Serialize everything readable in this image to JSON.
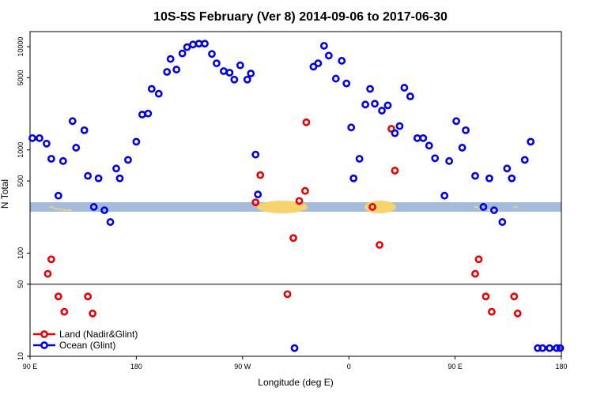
{
  "chart_data": {
    "type": "scatter",
    "title": "10S-5S February (Ver 8)   2014-09-06 to 2017-06-30",
    "xlabel": "Longitude (deg E)",
    "ylabel": "N Total",
    "y_scale": "log",
    "ylim": [
      10,
      14000
    ],
    "y_ticks": [
      {
        "value": 10,
        "label": "10"
      },
      {
        "value": 50,
        "label": "50"
      },
      {
        "value": 100,
        "label": "100"
      },
      {
        "value": 500,
        "label": "500"
      },
      {
        "value": 1000,
        "label": "1000"
      },
      {
        "value": 5000,
        "label": "5000"
      },
      {
        "value": 10000,
        "label": "10000"
      }
    ],
    "x_ticks": [
      {
        "value": 0,
        "label": "90 E"
      },
      {
        "value": 90,
        "label": "180"
      },
      {
        "value": 180,
        "label": "90 W"
      },
      {
        "value": 270,
        "label": "0"
      },
      {
        "value": 360,
        "label": "90 E"
      },
      {
        "value": 450,
        "label": "180"
      }
    ],
    "xlim": [
      0,
      450
    ],
    "reference_line": 50,
    "legend_position": "bottom-left",
    "colors": {
      "land": "#ee0000",
      "ocean": "#0000ee",
      "map_ocean": "#a4bcdc",
      "map_land": "#f7d36e"
    },
    "series": [
      {
        "name": "Land (Nadir&Glint)",
        "color": "#ee0000",
        "x": [
          15,
          18,
          24,
          29,
          49,
          53,
          191,
          195,
          218,
          223,
          228,
          233,
          234,
          290,
          296,
          306,
          309,
          377,
          380,
          386,
          391,
          410,
          413
        ],
        "y": [
          63,
          87,
          38,
          27,
          38,
          26,
          310,
          570,
          40,
          140,
          320,
          400,
          1850,
          280,
          120,
          1600,
          630,
          63,
          87,
          38,
          27,
          38,
          26
        ]
      },
      {
        "name": "Ocean (Glint)",
        "color": "#0000ee",
        "x": [
          2,
          8,
          14,
          18,
          24,
          28,
          36,
          39,
          46,
          49,
          54,
          58,
          63,
          68,
          73,
          76,
          83,
          90,
          95,
          100,
          103,
          109,
          116,
          119,
          124,
          129,
          133,
          138,
          143,
          148,
          154,
          158,
          164,
          169,
          173,
          178,
          184,
          187,
          191,
          193,
          224,
          240,
          244,
          249,
          253,
          259,
          264,
          268,
          272,
          274,
          279,
          284,
          288,
          292,
          298,
          303,
          309,
          313,
          317,
          322,
          328,
          333,
          338,
          343,
          351,
          355,
          361,
          366,
          369,
          377,
          384,
          389,
          393,
          400,
          404,
          408,
          419,
          424,
          430,
          434,
          440,
          446,
          449
        ],
        "y": [
          1300,
          1300,
          1150,
          820,
          360,
          780,
          1900,
          1050,
          1550,
          560,
          280,
          530,
          260,
          200,
          660,
          530,
          800,
          1200,
          2200,
          2250,
          3900,
          3500,
          5700,
          7600,
          6000,
          8600,
          9900,
          10500,
          10700,
          10700,
          8500,
          6900,
          5800,
          5600,
          4800,
          6600,
          4800,
          5500,
          900,
          370,
          12,
          6400,
          6900,
          10200,
          8200,
          4900,
          7300,
          4400,
          1650,
          530,
          820,
          2750,
          3900,
          2800,
          2400,
          2700,
          1450,
          1700,
          4000,
          3300,
          1300,
          1300,
          1100,
          830,
          360,
          780,
          1900,
          1050,
          1550,
          560,
          280,
          530,
          260,
          200,
          660,
          530,
          800,
          1200,
          12,
          12,
          12,
          12,
          12
        ]
      }
    ]
  }
}
